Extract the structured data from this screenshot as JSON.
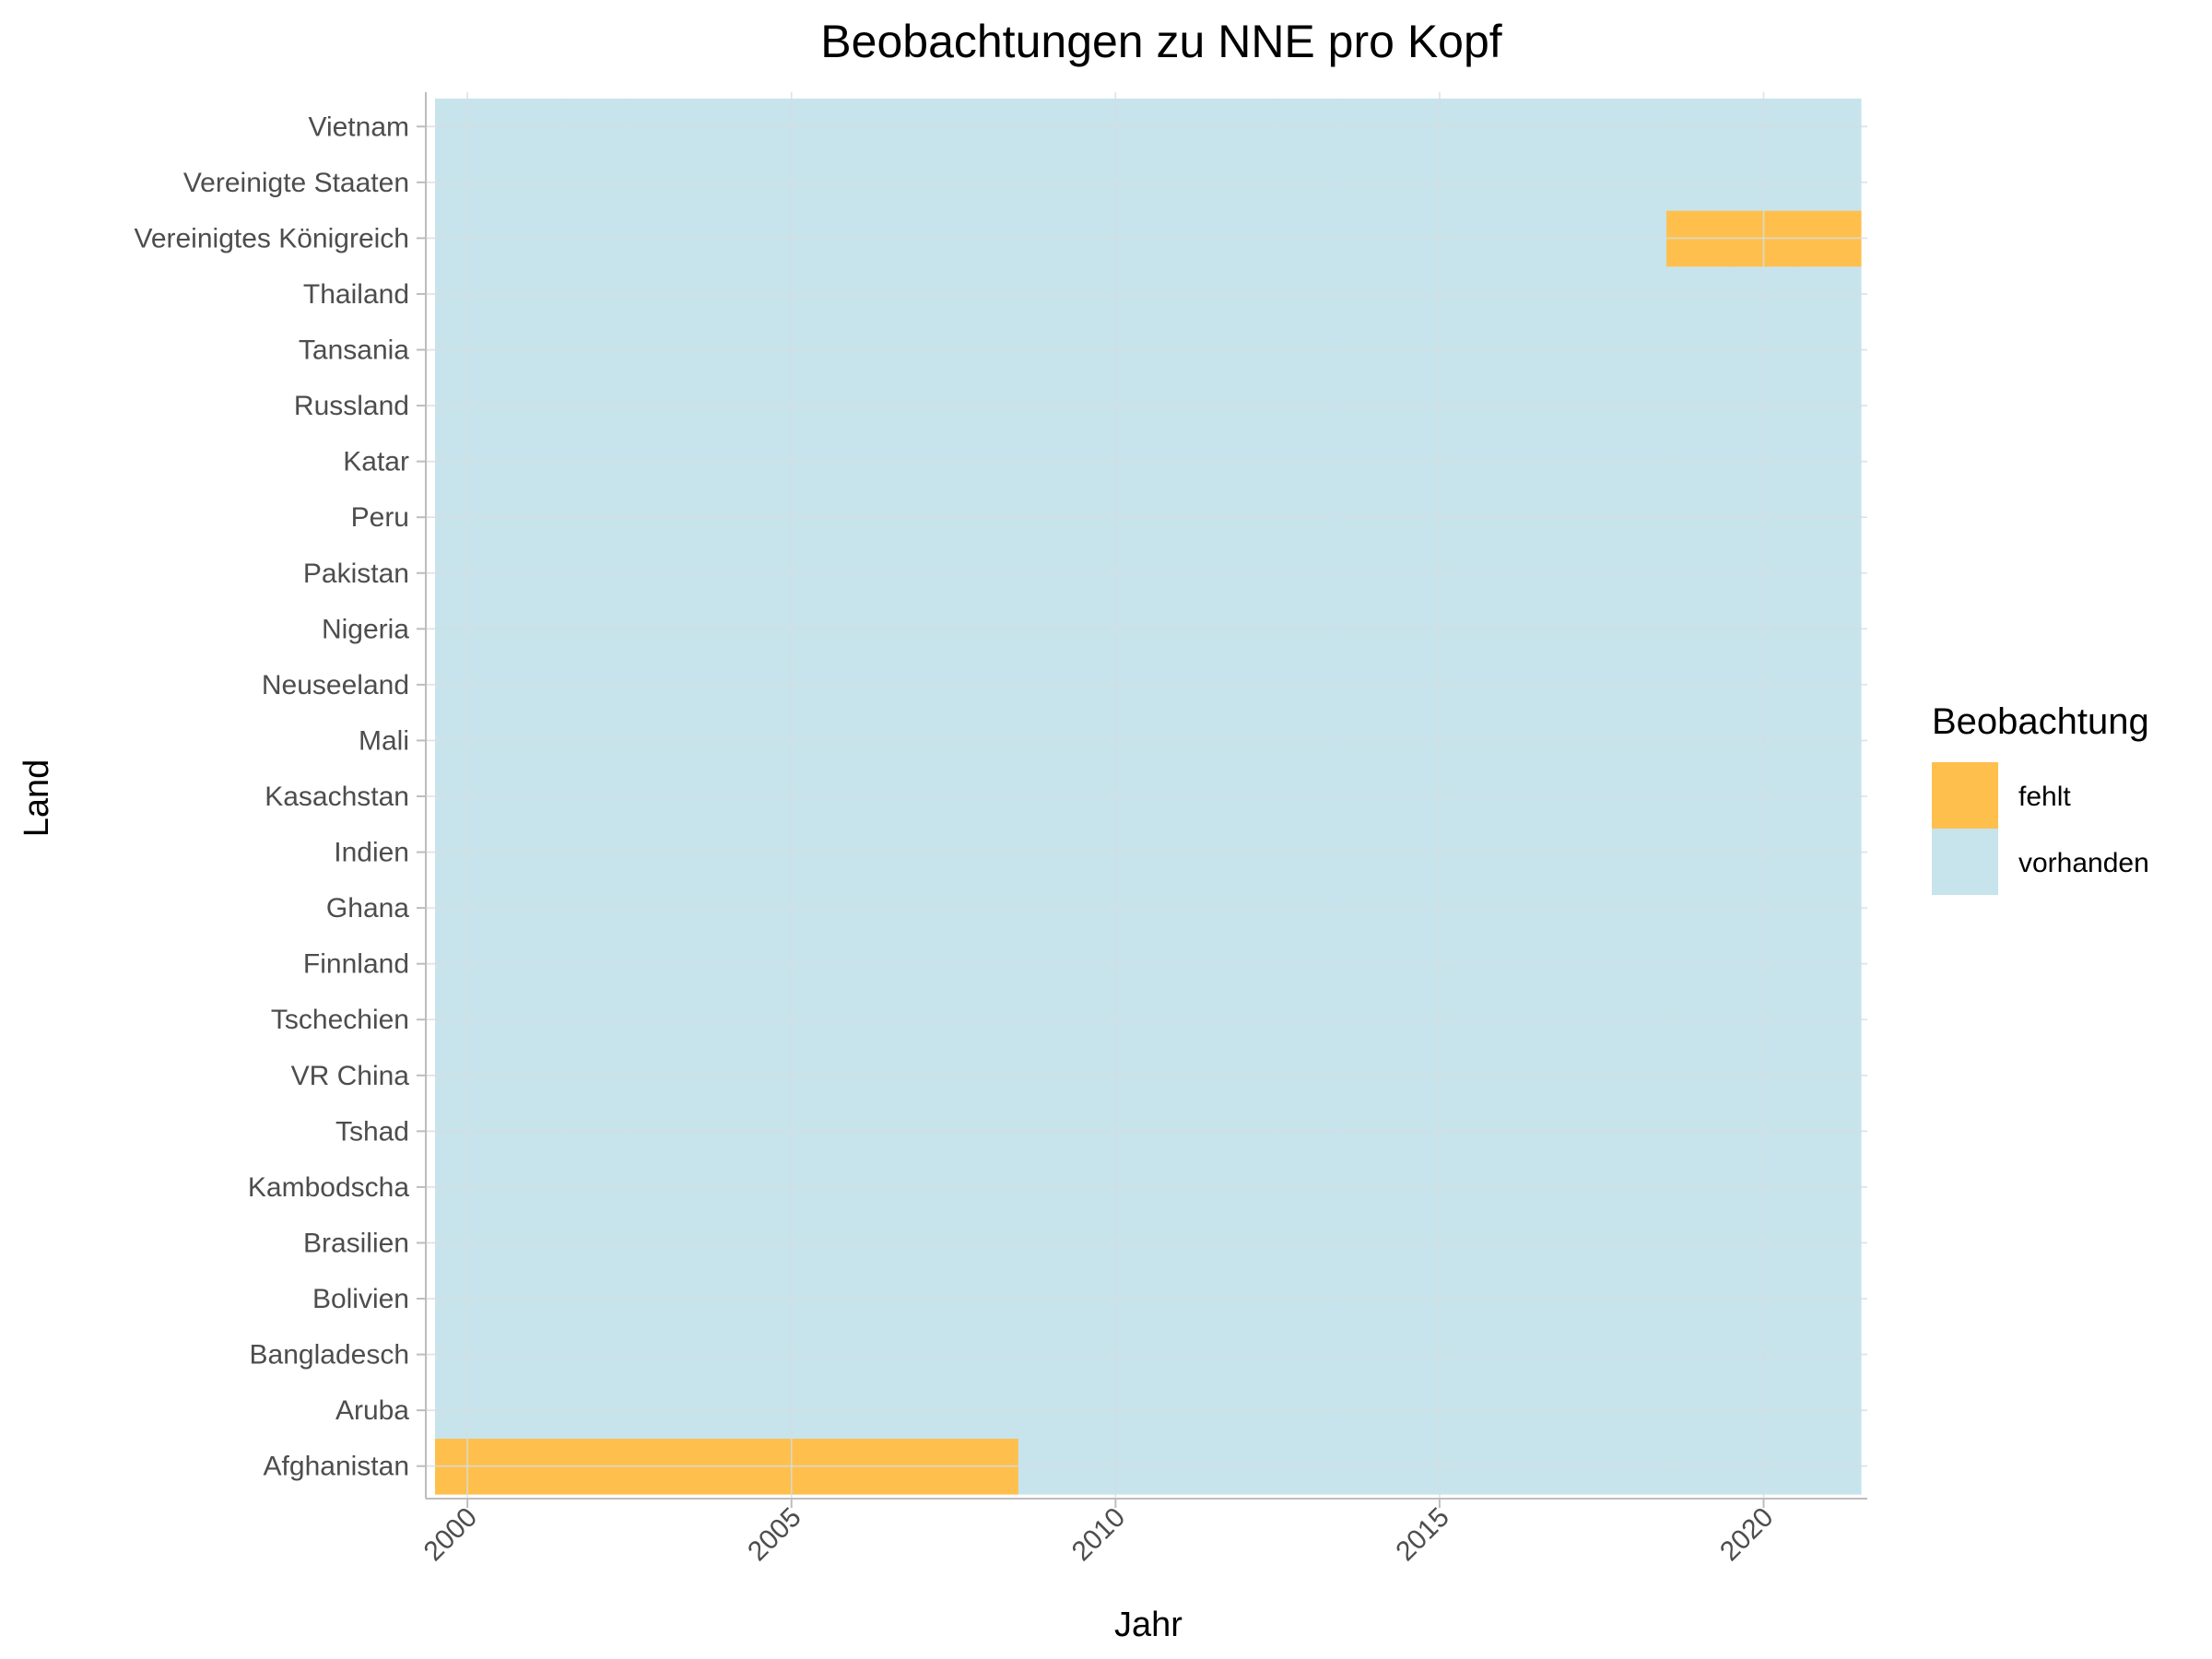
{
  "chart_data": {
    "type": "heatmap",
    "title": "Beobachtungen zu NNE pro Kopf",
    "xlabel": "Jahr",
    "ylabel": "Land",
    "x_ticks": [
      2000,
      2005,
      2010,
      2015,
      2020
    ],
    "x_range": [
      1999.5,
      2021.5
    ],
    "years": [
      2000,
      2001,
      2002,
      2003,
      2004,
      2005,
      2006,
      2007,
      2008,
      2009,
      2010,
      2011,
      2012,
      2013,
      2014,
      2015,
      2016,
      2017,
      2018,
      2019,
      2020,
      2021
    ],
    "countries": [
      "Afghanistan",
      "Aruba",
      "Bangladesch",
      "Bolivien",
      "Brasilien",
      "Kambodscha",
      "Tshad",
      "VR China",
      "Tschechien",
      "Finnland",
      "Ghana",
      "Indien",
      "Kasachstan",
      "Mali",
      "Neuseeland",
      "Nigeria",
      "Pakistan",
      "Peru",
      "Katar",
      "Russland",
      "Tansania",
      "Thailand",
      "Vereinigtes Königreich",
      "Vereinigte Staaten",
      "Vietnam"
    ],
    "default_status": "vorhanden",
    "missing": [
      {
        "country": "Afghanistan",
        "years": [
          2000,
          2001,
          2002,
          2003,
          2004,
          2005,
          2006,
          2007,
          2008
        ]
      },
      {
        "country": "Vereinigtes Königreich",
        "years": [
          2019,
          2020,
          2021
        ]
      }
    ],
    "legend": {
      "title": "Beobachtung",
      "position": "right",
      "items": [
        {
          "label": "fehlt",
          "color": "#FFBF4D"
        },
        {
          "label": "vorhanden",
          "color": "#C7E3EC"
        }
      ]
    },
    "grid": true,
    "colors": {
      "grid": "#D3DEE2",
      "axis": "#BDBDBD"
    }
  }
}
